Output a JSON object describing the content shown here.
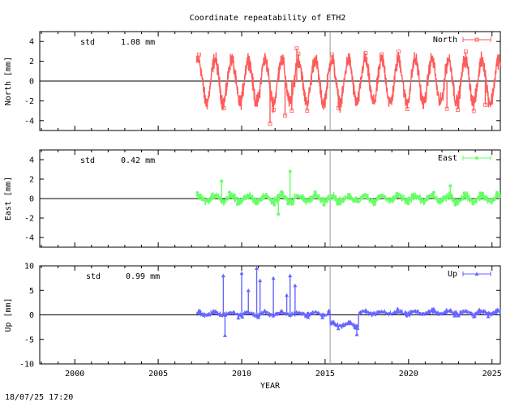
{
  "title": "Coordinate repeatability of ETH2",
  "xlabel": "YEAR",
  "timestamp": "18/07/25 17:20",
  "x_ticks": [
    2000,
    2005,
    2010,
    2015,
    2020,
    2025
  ],
  "xlim": [
    1997.9,
    2025.5
  ],
  "vline_year": 2015.3,
  "chart_data": [
    {
      "type": "line",
      "name": "north",
      "ylabel": "North [mm]",
      "legend": "North",
      "legend_position": "top-right",
      "stat_label": "std",
      "stat_value": "1.08 mm",
      "color": "#ff5a5a",
      "marker": "square",
      "ylim": [
        -5,
        5
      ],
      "y_ticks": [
        -4,
        -2,
        0,
        2,
        4
      ],
      "data_start": 2007.3,
      "data_end": 2025.5,
      "annual_amplitude": 2.2,
      "noise": 0.7,
      "outliers": [
        {
          "x": 2011.7,
          "y": -4.3
        },
        {
          "x": 2012.6,
          "y": -3.5
        },
        {
          "x": 2013.3,
          "y": 3.3
        },
        {
          "x": 2013.0,
          "y": -3.0
        },
        {
          "x": 2022.3,
          "y": -2.8
        },
        {
          "x": 2024.6,
          "y": -2.4
        }
      ]
    },
    {
      "type": "line",
      "name": "east",
      "ylabel": "East [mm]",
      "legend": "East",
      "legend_position": "top-right",
      "stat_label": "std",
      "stat_value": "0.42 mm",
      "color": "#66ff66",
      "marker": "circle",
      "ylim": [
        -5,
        5
      ],
      "y_ticks": [
        -4,
        -2,
        0,
        2,
        4
      ],
      "data_start": 2007.3,
      "data_end": 2025.5,
      "annual_amplitude": 0.3,
      "noise": 0.35,
      "outliers": [
        {
          "x": 2012.9,
          "y": 2.8
        },
        {
          "x": 2008.8,
          "y": 1.8
        },
        {
          "x": 2022.5,
          "y": 1.3
        },
        {
          "x": 2012.2,
          "y": -1.6
        }
      ]
    },
    {
      "type": "line",
      "name": "up",
      "ylabel": "Up [mm]",
      "legend": "Up",
      "legend_position": "top-right",
      "stat_label": "std",
      "stat_value": "0.99 mm",
      "color": "#6666ff",
      "marker": "triangle",
      "ylim": [
        -10,
        10
      ],
      "y_ticks": [
        -10,
        -5,
        0,
        5,
        10
      ],
      "segments": [
        {
          "start": 2007.3,
          "end": 2015.3,
          "level": 0.2
        },
        {
          "start": 2015.3,
          "end": 2017.0,
          "level": -2.0
        },
        {
          "start": 2017.0,
          "end": 2025.5,
          "level": 0.4
        }
      ],
      "annual_amplitude": 0.3,
      "noise": 0.45,
      "spikes": [
        {
          "x": 2008.9,
          "y": 8.0
        },
        {
          "x": 2010.0,
          "y": 8.5
        },
        {
          "x": 2010.4,
          "y": 5.0
        },
        {
          "x": 2010.9,
          "y": 9.5
        },
        {
          "x": 2011.1,
          "y": 7.0
        },
        {
          "x": 2011.9,
          "y": 7.5
        },
        {
          "x": 2012.7,
          "y": 4.0
        },
        {
          "x": 2012.9,
          "y": 8.0
        },
        {
          "x": 2013.2,
          "y": 6.0
        },
        {
          "x": 2009.0,
          "y": -4.2
        },
        {
          "x": 2016.9,
          "y": -4.0
        }
      ]
    }
  ]
}
